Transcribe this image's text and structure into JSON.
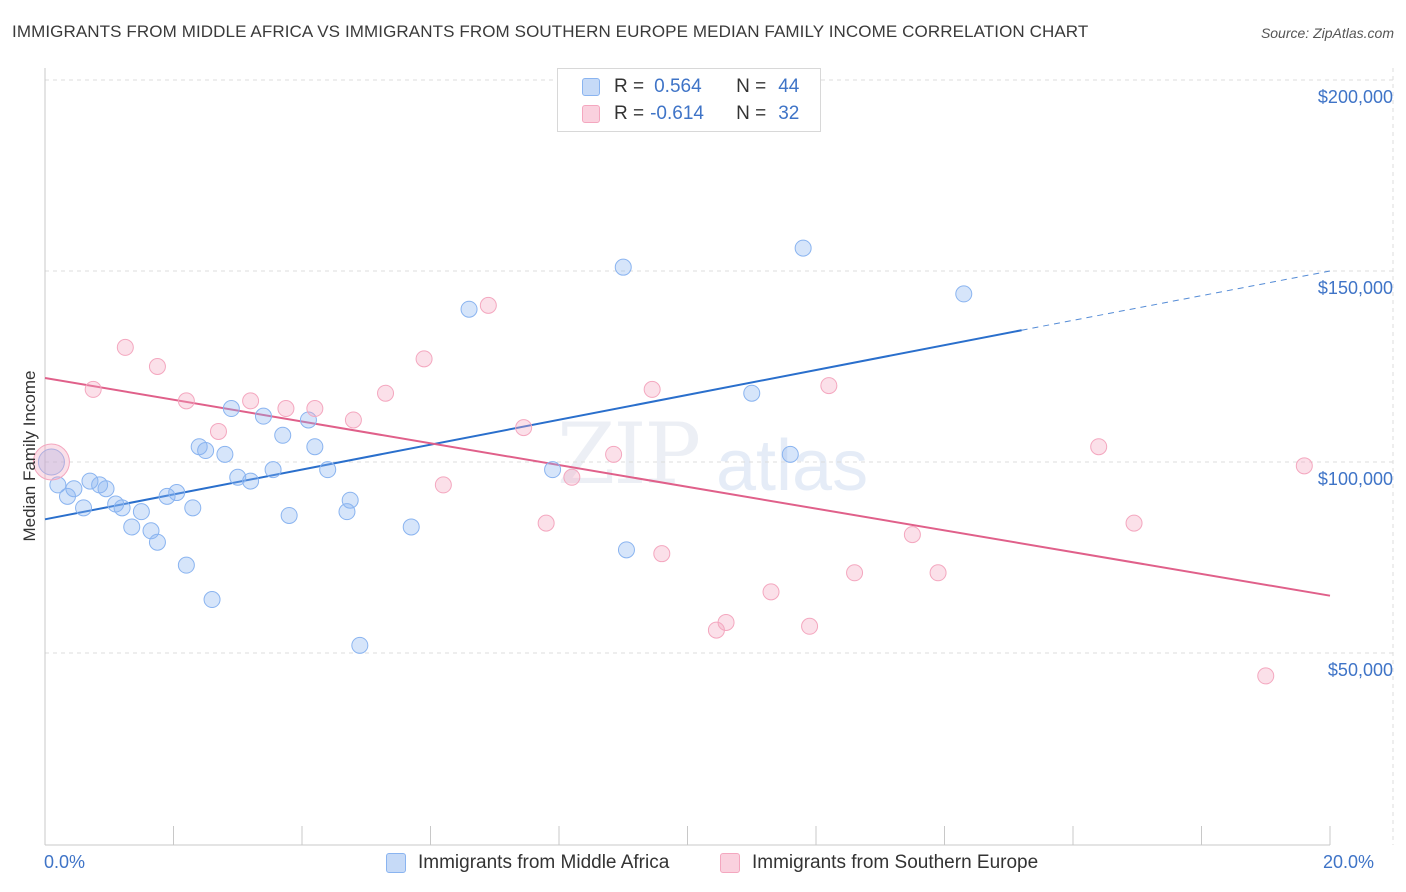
{
  "chart_data": {
    "type": "scatter",
    "title": "IMMIGRANTS FROM MIDDLE AFRICA VS IMMIGRANTS FROM SOUTHERN EUROPE MEDIAN FAMILY INCOME CORRELATION CHART",
    "source": "Source: ZipAtlas.com",
    "ylabel": "Median Family Income",
    "xlim": [
      0,
      20
    ],
    "ylim": [
      0,
      205000
    ],
    "x_tick_labels": [
      "0.0%",
      "20.0%"
    ],
    "y_ticks": [
      {
        "value": 50000,
        "label": "$50,000"
      },
      {
        "value": 100000,
        "label": "$100,000"
      },
      {
        "value": 150000,
        "label": "$150,000"
      },
      {
        "value": 200000,
        "label": "$200,000"
      }
    ],
    "watermark": [
      "ZIP",
      "atlas"
    ],
    "series": [
      {
        "name": "Immigrants from Middle Africa",
        "color": "#8ab4f0",
        "line_color": "#2a6fcc",
        "R": "0.564",
        "N": "44",
        "points": [
          [
            0.1,
            100000
          ],
          [
            0.2,
            94000
          ],
          [
            0.35,
            91000
          ],
          [
            0.45,
            93000
          ],
          [
            0.6,
            88000
          ],
          [
            0.7,
            95000
          ],
          [
            0.85,
            94000
          ],
          [
            0.95,
            93000
          ],
          [
            1.1,
            89000
          ],
          [
            1.2,
            88000
          ],
          [
            1.35,
            83000
          ],
          [
            1.5,
            87000
          ],
          [
            1.65,
            82000
          ],
          [
            1.75,
            79000
          ],
          [
            1.9,
            91000
          ],
          [
            2.05,
            92000
          ],
          [
            2.2,
            73000
          ],
          [
            2.3,
            88000
          ],
          [
            2.4,
            104000
          ],
          [
            2.5,
            103000
          ],
          [
            2.6,
            64000
          ],
          [
            2.8,
            102000
          ],
          [
            2.9,
            114000
          ],
          [
            3.0,
            96000
          ],
          [
            3.2,
            95000
          ],
          [
            3.4,
            112000
          ],
          [
            3.55,
            98000
          ],
          [
            3.7,
            107000
          ],
          [
            3.8,
            86000
          ],
          [
            4.1,
            111000
          ],
          [
            4.2,
            104000
          ],
          [
            4.4,
            98000
          ],
          [
            4.7,
            87000
          ],
          [
            4.75,
            90000
          ],
          [
            4.9,
            52000
          ],
          [
            5.7,
            83000
          ],
          [
            6.6,
            140000
          ],
          [
            7.9,
            98000
          ],
          [
            9.0,
            151000
          ],
          [
            9.05,
            77000
          ],
          [
            11.0,
            118000
          ],
          [
            11.6,
            102000
          ],
          [
            11.8,
            156000
          ],
          [
            14.3,
            144000
          ]
        ],
        "trend": {
          "x0": 0,
          "y0": 85000,
          "x1": 15.2,
          "y1": 134500,
          "dash_x1": 20,
          "dash_y1": 150000
        }
      },
      {
        "name": "Immigrants from Southern Europe",
        "color": "#f4a7bf",
        "line_color": "#e0608a",
        "R": "-0.614",
        "N": "32",
        "points": [
          [
            0.1,
            100000
          ],
          [
            0.75,
            119000
          ],
          [
            1.25,
            130000
          ],
          [
            1.75,
            125000
          ],
          [
            2.2,
            116000
          ],
          [
            2.7,
            108000
          ],
          [
            3.2,
            116000
          ],
          [
            3.75,
            114000
          ],
          [
            4.2,
            114000
          ],
          [
            4.8,
            111000
          ],
          [
            5.3,
            118000
          ],
          [
            5.9,
            127000
          ],
          [
            6.2,
            94000
          ],
          [
            6.9,
            141000
          ],
          [
            7.45,
            109000
          ],
          [
            7.8,
            84000
          ],
          [
            8.2,
            96000
          ],
          [
            8.85,
            102000
          ],
          [
            9.45,
            119000
          ],
          [
            9.6,
            76000
          ],
          [
            10.45,
            56000
          ],
          [
            10.6,
            58000
          ],
          [
            11.3,
            66000
          ],
          [
            11.9,
            57000
          ],
          [
            12.2,
            120000
          ],
          [
            12.6,
            71000
          ],
          [
            13.5,
            81000
          ],
          [
            13.9,
            71000
          ],
          [
            16.4,
            104000
          ],
          [
            16.95,
            84000
          ],
          [
            19.0,
            44000
          ],
          [
            19.6,
            99000
          ]
        ],
        "trend": {
          "x0": 0,
          "y0": 122000,
          "x1": 20,
          "y1": 65000
        }
      }
    ]
  }
}
